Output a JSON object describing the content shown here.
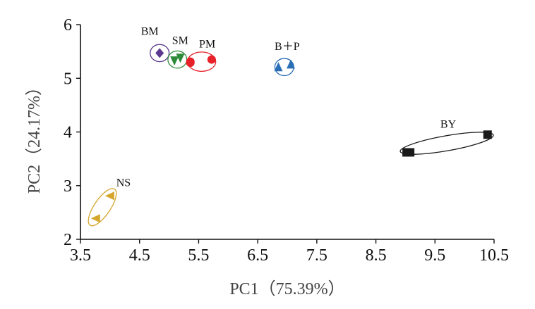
{
  "chart_data": {
    "type": "scatter",
    "title": "",
    "xlabel": "PC1（75.39%）",
    "ylabel": "PC2（24.17%）",
    "xlim": [
      3.5,
      10.5
    ],
    "ylim": [
      2,
      6
    ],
    "xticks": [
      3.5,
      4.5,
      5.5,
      6.5,
      7.5,
      8.5,
      9.5,
      10.5
    ],
    "xtick_labels": [
      "3.5",
      "4.5",
      "5.5",
      "6.5",
      "7.5",
      "8.5",
      "9.5",
      "10.5"
    ],
    "yticks": [
      2,
      3,
      4,
      5,
      6
    ],
    "ytick_labels": [
      "2",
      "3",
      "4",
      "5",
      "6"
    ],
    "grid": false,
    "groups": [
      {
        "label": "BM",
        "marker": "diamond",
        "color": "#5b3a8e",
        "points": [
          {
            "x": 4.84,
            "y": 5.47
          }
        ],
        "ellipse": {
          "cx": 4.84,
          "cy": 5.47,
          "rx": 0.16,
          "ry": 0.16,
          "angle": 0
        }
      },
      {
        "label": "SM",
        "marker": "triangle-down",
        "color": "#2e8b3a",
        "points": [
          {
            "x": 5.09,
            "y": 5.33
          },
          {
            "x": 5.19,
            "y": 5.38
          }
        ],
        "ellipse": {
          "cx": 5.14,
          "cy": 5.35,
          "rx": 0.16,
          "ry": 0.16,
          "angle": 0
        }
      },
      {
        "label": "PM",
        "marker": "circle",
        "color": "#e8202a",
        "points": [
          {
            "x": 5.36,
            "y": 5.29
          },
          {
            "x": 5.36,
            "y": 5.31
          },
          {
            "x": 5.72,
            "y": 5.35
          }
        ],
        "ellipse": {
          "cx": 5.55,
          "cy": 5.31,
          "rx": 0.24,
          "ry": 0.18,
          "angle": 0
        }
      },
      {
        "label": "B＋P",
        "marker": "triangle-up",
        "color": "#2a6fb6",
        "points": [
          {
            "x": 6.85,
            "y": 5.21
          },
          {
            "x": 7.06,
            "y": 5.26
          }
        ],
        "ellipse": {
          "cx": 6.95,
          "cy": 5.21,
          "rx": 0.16,
          "ry": 0.16,
          "angle": 0
        }
      },
      {
        "label": "BY",
        "marker": "square",
        "color": "#1a1a1a",
        "points": [
          {
            "x": 9.02,
            "y": 3.62
          },
          {
            "x": 9.08,
            "y": 3.62
          },
          {
            "x": 10.39,
            "y": 3.95
          }
        ],
        "ellipse": {
          "cx": 9.7,
          "cy": 3.79,
          "rx": 0.8,
          "ry": 0.14,
          "angle": -10
        }
      },
      {
        "label": "NS",
        "marker": "triangle-left",
        "color": "#d4a72c",
        "points": [
          {
            "x": 3.76,
            "y": 2.39
          },
          {
            "x": 4.0,
            "y": 2.81
          }
        ],
        "ellipse": {
          "cx": 3.87,
          "cy": 2.6,
          "rx": 0.37,
          "ry": 0.15,
          "angle": -56
        }
      }
    ]
  }
}
